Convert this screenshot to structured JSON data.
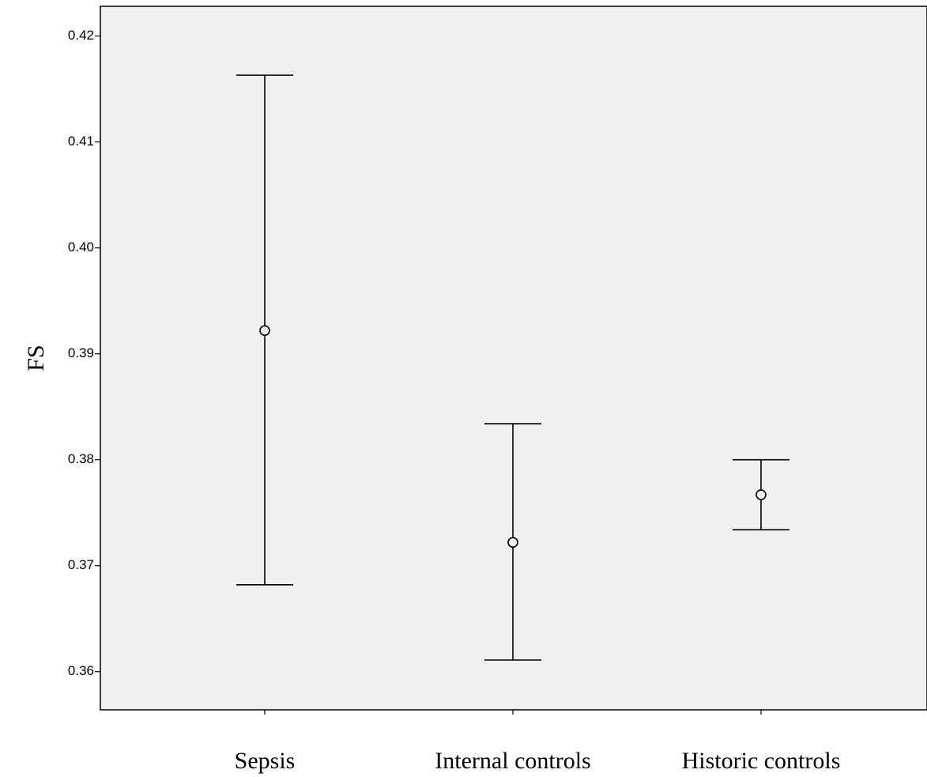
{
  "chart_data": {
    "type": "errorbar",
    "title": "",
    "xlabel": "",
    "ylabel": "FS",
    "ylim": [
      0.3564,
      0.4228
    ],
    "yticks": [
      "0.36",
      "0.37",
      "0.38",
      "0.39",
      "0.40",
      "0.41",
      "0.42"
    ],
    "ytick_values": [
      0.36,
      0.37,
      0.38,
      0.39,
      0.4,
      0.41,
      0.42
    ],
    "categories": [
      "Sepsis",
      "Internal controls",
      "Historic controls"
    ],
    "series": [
      {
        "mean": [
          0.3922,
          0.3722,
          0.3767
        ],
        "lower": [
          0.3682,
          0.3611,
          0.3734
        ],
        "upper": [
          0.4163,
          0.3834,
          0.38
        ]
      }
    ],
    "grid": false,
    "legend": "none",
    "colors": {
      "plot_background": "#f0f0f0",
      "stroke": "#000000"
    }
  }
}
